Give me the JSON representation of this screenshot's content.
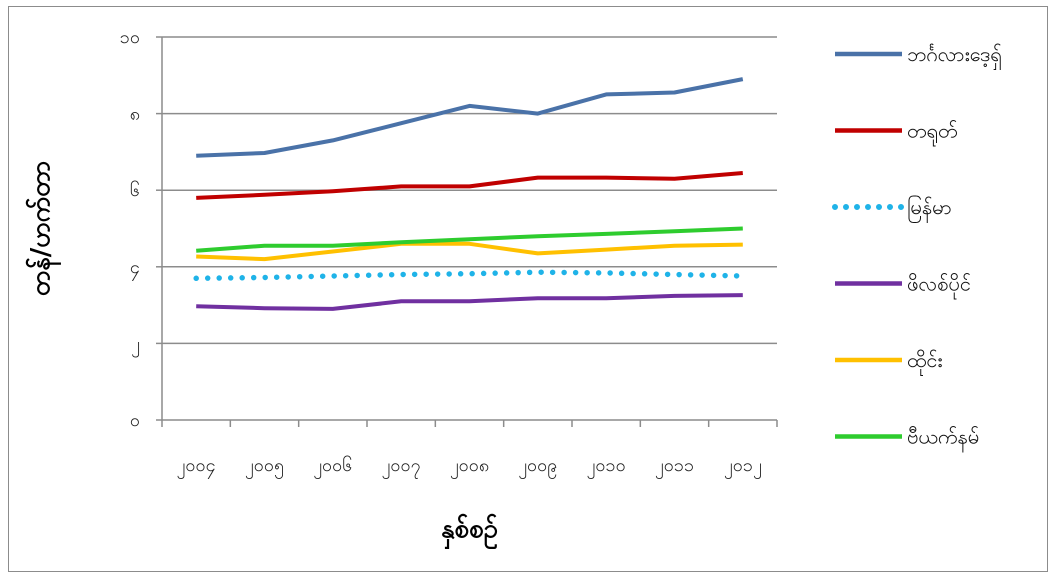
{
  "chart_data": {
    "type": "line",
    "title": "",
    "xlabel": "နှစ်စဉ်",
    "ylabel": "တန်/ဟက်တာ",
    "x": [
      "၂၀၀၄",
      "၂၀၀၅",
      "၂၀၀၆",
      "၂၀၀၇",
      "၂၀၀၈",
      "၂၀၀၉",
      "၂၀၁၀",
      "၂၀၁၁",
      "၂၀၁၂"
    ],
    "yticks": [
      {
        "value": 0,
        "label": "၀"
      },
      {
        "value": 2,
        "label": "၂"
      },
      {
        "value": 4,
        "label": "၄"
      },
      {
        "value": 6,
        "label": "၆"
      },
      {
        "value": 8,
        "label": "၈"
      },
      {
        "value": 10,
        "label": "၁၀"
      }
    ],
    "ylim": [
      0,
      10
    ],
    "grid": true,
    "legend_position": "right",
    "series": [
      {
        "name": "ဘင်္ဂလားဒေ့ရှ်",
        "color": "#4A72A8",
        "dash": "solid",
        "values": [
          6.9,
          6.97,
          7.3,
          7.75,
          8.2,
          8.0,
          8.5,
          8.55,
          8.9
        ]
      },
      {
        "name": "တရုတ်",
        "color": "#C00000",
        "dash": "solid",
        "values": [
          5.8,
          5.88,
          5.97,
          6.1,
          6.1,
          6.33,
          6.33,
          6.3,
          6.45
        ]
      },
      {
        "name": "မြန်မာ",
        "color": "#1FB3E8",
        "dash": "dotted",
        "values": [
          3.7,
          3.72,
          3.76,
          3.8,
          3.82,
          3.86,
          3.84,
          3.8,
          3.76
        ]
      },
      {
        "name": "ဖိလစ်ပိုင်",
        "color": "#7030A0",
        "dash": "solid",
        "values": [
          2.97,
          2.92,
          2.9,
          3.1,
          3.1,
          3.18,
          3.18,
          3.24,
          3.26
        ]
      },
      {
        "name": "ထိုင်း",
        "color": "#FFC000",
        "dash": "solid",
        "values": [
          4.27,
          4.2,
          4.4,
          4.6,
          4.6,
          4.35,
          4.45,
          4.55,
          4.58
        ]
      },
      {
        "name": "ဗီယက်နမ်",
        "color": "#2ECC2E",
        "dash": "solid",
        "values": [
          4.42,
          4.55,
          4.55,
          4.64,
          4.72,
          4.8,
          4.86,
          4.93,
          5.0
        ]
      }
    ]
  }
}
